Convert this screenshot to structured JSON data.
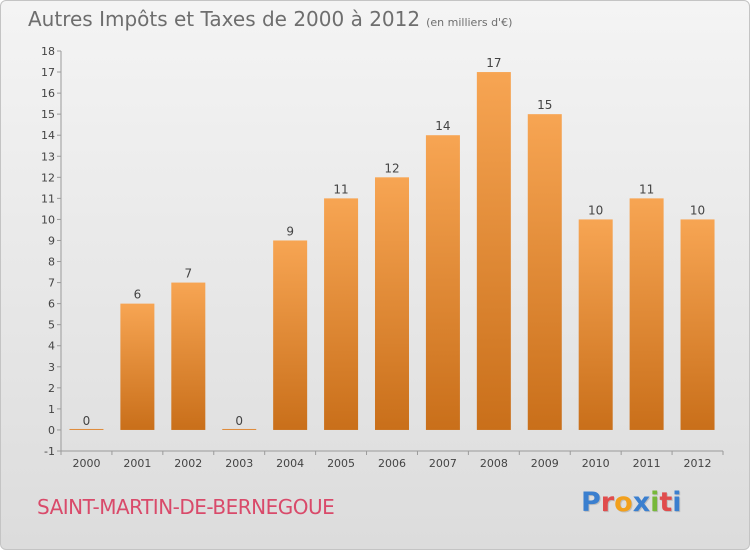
{
  "header": {
    "title": "Autres Impôts et Taxes de 2000 à 2012",
    "unit": "(en milliers d'€)"
  },
  "footer": {
    "commune": "SAINT-MARTIN-DE-BERNEGOUE",
    "logo": "Proxiti"
  },
  "colors": {
    "bar_top": "#f7a553",
    "bar_bottom": "#c96f1a",
    "commune_text": "#d94a6a",
    "logo_letters": [
      "#3a7fcf",
      "#e04c4c",
      "#f2a01c",
      "#3a7fcf",
      "#77b83a",
      "#e04c4c",
      "#3a7fcf"
    ]
  },
  "chart_data": {
    "type": "bar",
    "title": "Autres Impôts et Taxes de 2000 à 2012",
    "subtitle": "(en milliers d'€)",
    "xlabel": "",
    "ylabel": "",
    "categories": [
      "2000",
      "2001",
      "2002",
      "2003",
      "2004",
      "2005",
      "2006",
      "2007",
      "2008",
      "2009",
      "2010",
      "2011",
      "2012"
    ],
    "values": [
      0,
      6,
      7,
      0,
      9,
      11,
      12,
      14,
      17,
      15,
      10,
      11,
      10
    ],
    "data_labels": [
      "0",
      "6",
      "7",
      "0",
      "9",
      "11",
      "12",
      "14",
      "17",
      "15",
      "10",
      "11",
      "10"
    ],
    "ylim": [
      -1,
      18
    ],
    "yticks": [
      "-1",
      "0",
      "1",
      "2",
      "3",
      "4",
      "5",
      "6",
      "7",
      "8",
      "9",
      "10",
      "11",
      "12",
      "13",
      "14",
      "15",
      "16",
      "17",
      "18"
    ],
    "grid": false,
    "legend": "none"
  }
}
